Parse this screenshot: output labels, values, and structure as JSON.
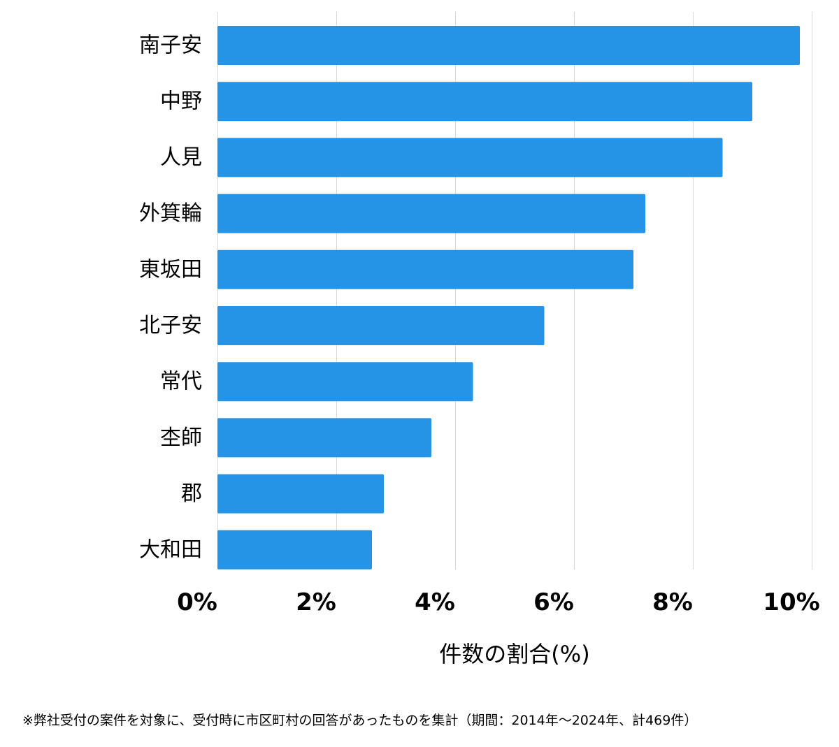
{
  "chart_data": {
    "type": "bar",
    "orientation": "horizontal",
    "categories": [
      "南子安",
      "中野",
      "人見",
      "外箕輪",
      "東坂田",
      "北子安",
      "常代",
      "杢師",
      "郡",
      "大和田"
    ],
    "values": [
      9.8,
      9.0,
      8.5,
      7.2,
      7.0,
      5.5,
      4.3,
      3.6,
      2.8,
      2.6
    ],
    "xlabel": "件数の割合(%)",
    "ylabel": "",
    "xlim": [
      0,
      10
    ],
    "xticks": [
      0,
      2,
      4,
      6,
      8,
      10
    ],
    "xtick_labels": [
      "0%",
      "2%",
      "4%",
      "6%",
      "8%",
      "10%"
    ],
    "grid": "vertical",
    "bar_color": "#2593e6",
    "grid_color": "#d9d9d9"
  },
  "footnote": "※弊社受付の案件を対象に、受付時に市区町村の回答があったものを集計（期間：2014年～2024年、計469件）"
}
